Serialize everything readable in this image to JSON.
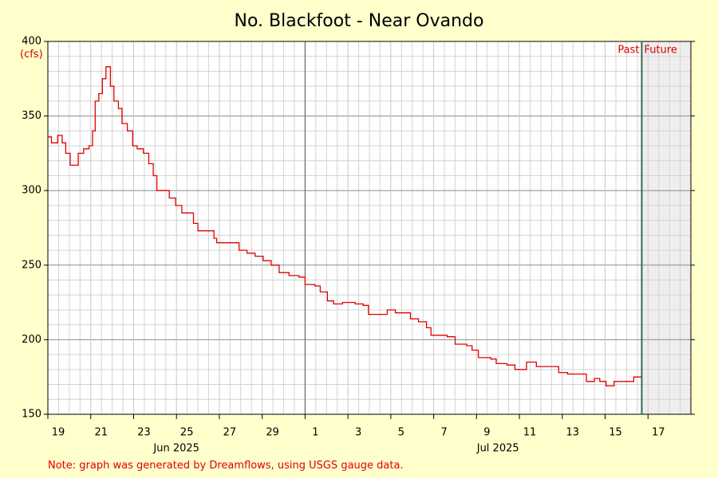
{
  "chart_data": {
    "type": "line",
    "title": "No. Blackfoot - Near Ovando",
    "y_unit_label": "(cfs)",
    "note": "Note: graph was generated by Dreamflows, using USGS gauge data.",
    "step": true,
    "grid": true,
    "xlim": [
      "2025-06-19T00:00",
      "2025-07-19T00:00"
    ],
    "ylim": [
      150,
      400
    ],
    "yticks": [
      150,
      200,
      250,
      300,
      350,
      400
    ],
    "xticks": [
      {
        "value": "2025-06-19T00:00",
        "label": "19"
      },
      {
        "value": "2025-06-21T00:00",
        "label": "21"
      },
      {
        "value": "2025-06-23T00:00",
        "label": "23"
      },
      {
        "value": "2025-06-25T00:00",
        "label": "25"
      },
      {
        "value": "2025-06-27T00:00",
        "label": "27"
      },
      {
        "value": "2025-06-29T00:00",
        "label": "29"
      },
      {
        "value": "2025-07-01T00:00",
        "label": "1"
      },
      {
        "value": "2025-07-03T00:00",
        "label": "3"
      },
      {
        "value": "2025-07-05T00:00",
        "label": "5"
      },
      {
        "value": "2025-07-07T00:00",
        "label": "7"
      },
      {
        "value": "2025-07-09T00:00",
        "label": "9"
      },
      {
        "value": "2025-07-11T00:00",
        "label": "11"
      },
      {
        "value": "2025-07-13T00:00",
        "label": "13"
      },
      {
        "value": "2025-07-15T00:00",
        "label": "15"
      },
      {
        "value": "2025-07-17T00:00",
        "label": "17"
      }
    ],
    "month_labels": [
      {
        "value": "2025-06-25T00:00",
        "label": "Jun 2025"
      },
      {
        "value": "2025-07-10T00:00",
        "label": "Jul 2025"
      }
    ],
    "month_lines": [
      "2025-07-01T00:00"
    ],
    "now": {
      "value": "2025-07-16T17:00",
      "past_label": "Past",
      "future_label": "Future",
      "color": "#2e6b4f"
    },
    "x": [
      "2025-06-19T00:00",
      "2025-06-19T04:00",
      "2025-06-19T11:00",
      "2025-06-19T16:00",
      "2025-06-19T20:00",
      "2025-06-20T01:00",
      "2025-06-20T07:00",
      "2025-06-20T10:00",
      "2025-06-20T16:00",
      "2025-06-20T22:00",
      "2025-06-21T02:00",
      "2025-06-21T05:00",
      "2025-06-21T09:00",
      "2025-06-21T13:00",
      "2025-06-21T17:00",
      "2025-06-21T22:00",
      "2025-06-22T02:00",
      "2025-06-22T07:00",
      "2025-06-22T11:00",
      "2025-06-22T17:00",
      "2025-06-22T23:00",
      "2025-06-23T04:00",
      "2025-06-23T11:00",
      "2025-06-23T17:00",
      "2025-06-23T22:00",
      "2025-06-24T02:00",
      "2025-06-24T10:00",
      "2025-06-24T16:00",
      "2025-06-24T23:00",
      "2025-06-25T06:00",
      "2025-06-25T15:00",
      "2025-06-25T19:00",
      "2025-06-26T00:00",
      "2025-06-26T09:00",
      "2025-06-26T18:00",
      "2025-06-26T21:00",
      "2025-06-27T06:00",
      "2025-06-27T15:00",
      "2025-06-27T22:00",
      "2025-06-28T07:00",
      "2025-06-28T16:00",
      "2025-06-29T01:00",
      "2025-06-29T10:00",
      "2025-06-29T19:00",
      "2025-06-30T06:00",
      "2025-06-30T17:00",
      "2025-07-01T00:00",
      "2025-07-01T11:00",
      "2025-07-01T17:00",
      "2025-07-02T01:00",
      "2025-07-02T08:00",
      "2025-07-02T18:00",
      "2025-07-03T08:00",
      "2025-07-03T17:00",
      "2025-07-03T23:00",
      "2025-07-04T11:00",
      "2025-07-04T20:00",
      "2025-07-05T05:00",
      "2025-07-05T16:00",
      "2025-07-05T22:00",
      "2025-07-06T07:00",
      "2025-07-06T16:00",
      "2025-07-06T21:00",
      "2025-07-07T15:00",
      "2025-07-08T00:00",
      "2025-07-08T13:00",
      "2025-07-08T19:00",
      "2025-07-09T02:00",
      "2025-07-09T16:00",
      "2025-07-09T22:00",
      "2025-07-10T10:00",
      "2025-07-10T19:00",
      "2025-07-11T08:00",
      "2025-07-11T19:00",
      "2025-07-12T11:00",
      "2025-07-12T20:00",
      "2025-07-13T06:00",
      "2025-07-13T18:00",
      "2025-07-14T03:00",
      "2025-07-14T12:00",
      "2025-07-14T18:00",
      "2025-07-15T01:00",
      "2025-07-15T10:00",
      "2025-07-16T04:00",
      "2025-07-16T08:00",
      "2025-07-16T17:00"
    ],
    "series": [
      {
        "name": "Flow",
        "color": "#e00000",
        "values": [
          336,
          332,
          337,
          332,
          325,
          317,
          317,
          325,
          328,
          330,
          340,
          360,
          365,
          375,
          383,
          370,
          360,
          355,
          345,
          340,
          330,
          328,
          325,
          318,
          310,
          300,
          300,
          295,
          290,
          285,
          285,
          278,
          273,
          273,
          268,
          265,
          265,
          265,
          260,
          258,
          256,
          253,
          250,
          245,
          243,
          242,
          237,
          236,
          232,
          226,
          224,
          225,
          224,
          223,
          217,
          217,
          220,
          218,
          218,
          214,
          212,
          208,
          203,
          202,
          197,
          196,
          193,
          188,
          187,
          184,
          183,
          180,
          185,
          182,
          182,
          178,
          177,
          177,
          172,
          174,
          172,
          169,
          172,
          172,
          175,
          173
        ]
      }
    ]
  }
}
